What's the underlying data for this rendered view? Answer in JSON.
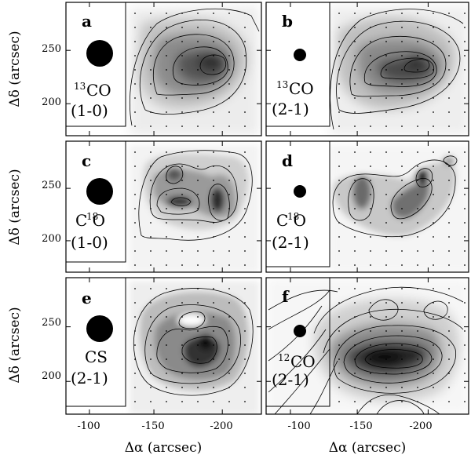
{
  "figure": {
    "axes": {
      "xlabel": "Δα (arcsec)",
      "ylabel": "Δδ (arcsec)",
      "xticks": [
        "-100",
        "-150",
        "-200"
      ],
      "yticks": [
        "250",
        "200"
      ]
    },
    "panels": [
      {
        "id": "a",
        "label": "a",
        "species": "13CO",
        "iso": "13",
        "mol": "CO",
        "transition": "(1-0)",
        "beam": "large"
      },
      {
        "id": "b",
        "label": "b",
        "species": "13CO",
        "iso": "13",
        "mol": "CO",
        "transition": "(2-1)",
        "beam": "small"
      },
      {
        "id": "c",
        "label": "c",
        "species": "C18O",
        "iso": "18",
        "mol": "C O",
        "transition": "(1-0)",
        "beam": "large"
      },
      {
        "id": "d",
        "label": "d",
        "species": "C18O",
        "iso": "18",
        "mol": "C O",
        "transition": "(2-1)",
        "beam": "small"
      },
      {
        "id": "e",
        "label": "e",
        "species": "CS",
        "iso": "",
        "mol": "CS",
        "transition": "(2-1)",
        "beam": "large"
      },
      {
        "id": "f",
        "label": "f",
        "species": "12CO",
        "iso": "12",
        "mol": "CO",
        "transition": "(2-1)",
        "beam": "small"
      }
    ],
    "colors": {
      "frame": "#000000",
      "peak": "#1a1a1a",
      "background": "#ffffff"
    }
  }
}
